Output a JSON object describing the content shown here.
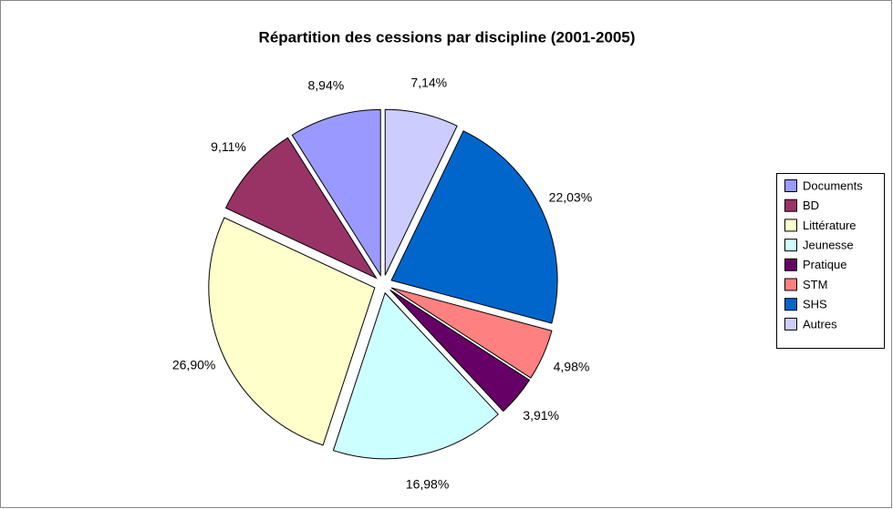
{
  "chart_data": {
    "type": "pie",
    "title": "Répartition des cessions par discipline (2001-2005)",
    "categories": [
      "Documents",
      "BD",
      "Littérature",
      "Jeunesse",
      "Pratique",
      "STM",
      "SHS",
      "Autres"
    ],
    "values": [
      8.94,
      9.11,
      26.9,
      16.98,
      3.91,
      4.98,
      22.03,
      7.14
    ],
    "value_labels": [
      "8,94%",
      "9,11%",
      "26,90%",
      "16,98%",
      "3,91%",
      "4,98%",
      "22,03%",
      "7,14%"
    ],
    "colors": [
      "#9999ff",
      "#993366",
      "#ffffcc",
      "#ccffff",
      "#660066",
      "#ff8080",
      "#0066cc",
      "#ccccff"
    ],
    "legend": "right"
  }
}
